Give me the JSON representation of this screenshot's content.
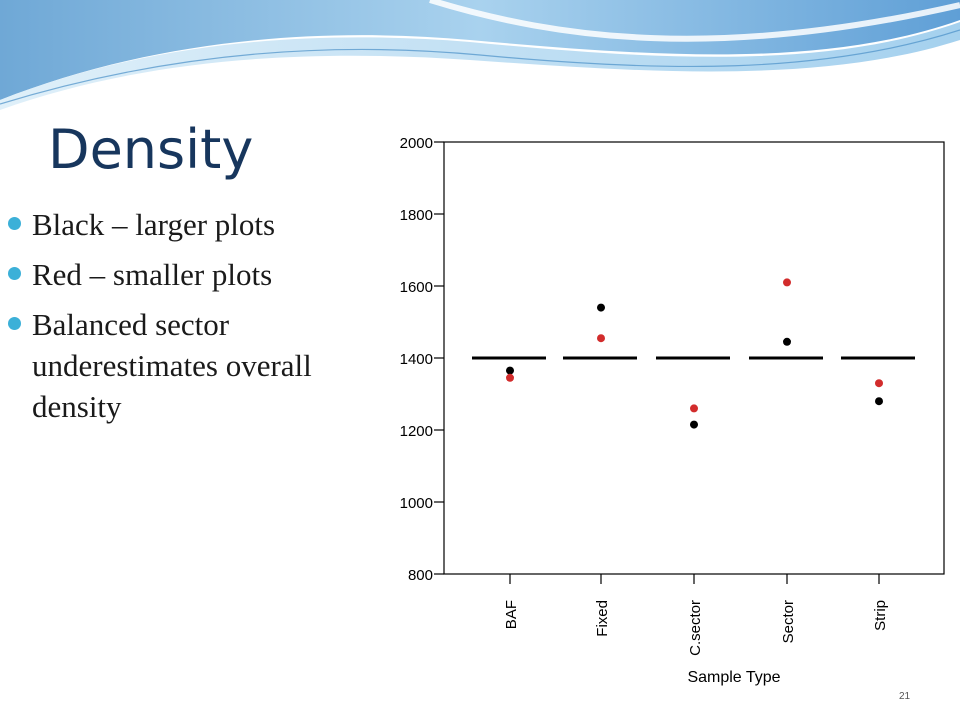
{
  "slide": {
    "title": "Density",
    "bullets": [
      "Black – larger plots",
      "Red – smaller plots",
      "Balanced sector underestimates overall density"
    ],
    "page_number": "21"
  },
  "colors": {
    "title": "#17365d",
    "bullet_dot": "#3cb0d8",
    "large_plots": "#000000",
    "small_plots": "#d22c2c",
    "reference_line": "#000000"
  },
  "chart_data": {
    "type": "scatter",
    "title": "",
    "xlabel": "Sample Type",
    "ylabel": "",
    "categories": [
      "BAF",
      "Fixed",
      "C.sector",
      "Sector",
      "Strip"
    ],
    "ylim": [
      800,
      2000
    ],
    "yticks": [
      800,
      1000,
      1200,
      1400,
      1600,
      1800,
      2000
    ],
    "reference_value": 1400,
    "series": [
      {
        "key": "large",
        "color": "#000000",
        "values": [
          1365,
          1540,
          1215,
          1445,
          1280
        ]
      },
      {
        "key": "small",
        "color": "#d22c2c",
        "values": [
          1345,
          1455,
          1260,
          1610,
          1330
        ]
      }
    ]
  }
}
